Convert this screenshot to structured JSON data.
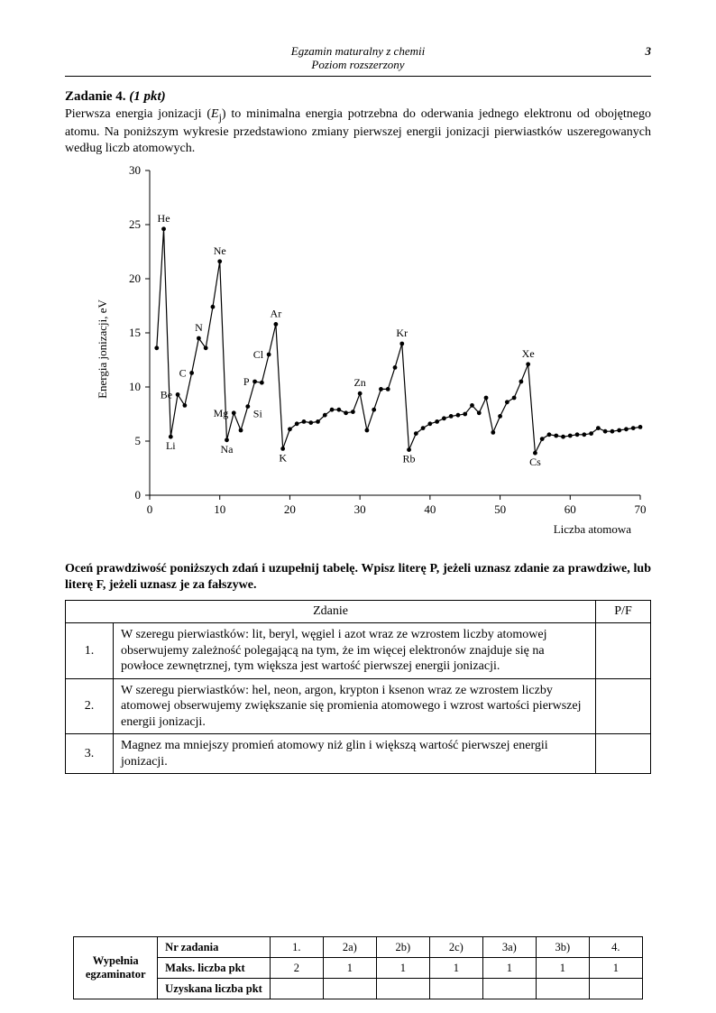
{
  "page_number": "3",
  "header_line1": "Egzamin maturalny z chemii",
  "header_line2": "Poziom rozszerzony",
  "task": {
    "label": "Zadanie 4.",
    "points": "(1 pkt)",
    "intro": "Pierwsza energia jonizacji (Ej) to minimalna energia potrzebna do oderwania jednego elektronu od obojętnego atomu. Na poniższym wykresie przedstawiono zmiany pierwszej energii jonizacji pierwiastków uszeregowanych według liczb atomowych.",
    "intro_pre": "Pierwsza energia jonizacji (",
    "intro_var": "E",
    "intro_sub": "j",
    "intro_post": ") to minimalna energia potrzebna do oderwania jednego elektronu od obojętnego atomu. Na poniższym wykresie przedstawiono zmiany pierwszej energii jonizacji pierwiastków uszeregowanych według liczb atomowych."
  },
  "chart": {
    "type": "line",
    "xlabel": "Liczba atomowa",
    "ylabel": "Energia jonizacji, eV",
    "xlim": [
      0,
      70
    ],
    "ylim": [
      0,
      30
    ],
    "xtick_step": 10,
    "ytick_step": 5,
    "background_color": "#ffffff",
    "line_color": "#000000",
    "marker_color": "#000000",
    "tick_fontsize": 13,
    "label_fontsize": 13,
    "element_label_fontsize": 12,
    "data": [
      {
        "x": 1,
        "y": 13.6
      },
      {
        "x": 2,
        "y": 24.6,
        "label": "He",
        "lpos": "t"
      },
      {
        "x": 3,
        "y": 5.4,
        "label": "Li",
        "lpos": "b"
      },
      {
        "x": 4,
        "y": 9.3,
        "label": "Be",
        "lpos": "l"
      },
      {
        "x": 5,
        "y": 8.3
      },
      {
        "x": 6,
        "y": 11.3,
        "label": "C",
        "lpos": "l"
      },
      {
        "x": 7,
        "y": 14.5,
        "label": "N",
        "lpos": "t"
      },
      {
        "x": 8,
        "y": 13.6
      },
      {
        "x": 9,
        "y": 17.4
      },
      {
        "x": 10,
        "y": 21.6,
        "label": "Ne",
        "lpos": "t"
      },
      {
        "x": 11,
        "y": 5.1,
        "label": "Na",
        "lpos": "b"
      },
      {
        "x": 12,
        "y": 7.6,
        "label": "Mg",
        "lpos": "l"
      },
      {
        "x": 13,
        "y": 6.0
      },
      {
        "x": 14,
        "y": 8.2,
        "label": "Si",
        "lpos": "br"
      },
      {
        "x": 15,
        "y": 10.5,
        "label": "P",
        "lpos": "l"
      },
      {
        "x": 16,
        "y": 10.4
      },
      {
        "x": 17,
        "y": 13.0,
        "label": "Cl",
        "lpos": "l"
      },
      {
        "x": 18,
        "y": 15.8,
        "label": "Ar",
        "lpos": "t"
      },
      {
        "x": 19,
        "y": 4.3,
        "label": "K",
        "lpos": "b"
      },
      {
        "x": 20,
        "y": 6.1
      },
      {
        "x": 21,
        "y": 6.6
      },
      {
        "x": 22,
        "y": 6.8
      },
      {
        "x": 23,
        "y": 6.7
      },
      {
        "x": 24,
        "y": 6.8
      },
      {
        "x": 25,
        "y": 7.4
      },
      {
        "x": 26,
        "y": 7.9
      },
      {
        "x": 27,
        "y": 7.9
      },
      {
        "x": 28,
        "y": 7.6
      },
      {
        "x": 29,
        "y": 7.7
      },
      {
        "x": 30,
        "y": 9.4,
        "label": "Zn",
        "lpos": "t"
      },
      {
        "x": 31,
        "y": 6.0
      },
      {
        "x": 32,
        "y": 7.9
      },
      {
        "x": 33,
        "y": 9.8
      },
      {
        "x": 34,
        "y": 9.8
      },
      {
        "x": 35,
        "y": 11.8
      },
      {
        "x": 36,
        "y": 14.0,
        "label": "Kr",
        "lpos": "t"
      },
      {
        "x": 37,
        "y": 4.2,
        "label": "Rb",
        "lpos": "b"
      },
      {
        "x": 38,
        "y": 5.7
      },
      {
        "x": 39,
        "y": 6.2
      },
      {
        "x": 40,
        "y": 6.6
      },
      {
        "x": 41,
        "y": 6.8
      },
      {
        "x": 42,
        "y": 7.1
      },
      {
        "x": 43,
        "y": 7.3
      },
      {
        "x": 44,
        "y": 7.4
      },
      {
        "x": 45,
        "y": 7.5
      },
      {
        "x": 46,
        "y": 8.3
      },
      {
        "x": 47,
        "y": 7.6
      },
      {
        "x": 48,
        "y": 9.0
      },
      {
        "x": 49,
        "y": 5.8
      },
      {
        "x": 50,
        "y": 7.3
      },
      {
        "x": 51,
        "y": 8.6
      },
      {
        "x": 52,
        "y": 9.0
      },
      {
        "x": 53,
        "y": 10.5
      },
      {
        "x": 54,
        "y": 12.1,
        "label": "Xe",
        "lpos": "t"
      },
      {
        "x": 55,
        "y": 3.9,
        "label": "Cs",
        "lpos": "b"
      },
      {
        "x": 56,
        "y": 5.2
      },
      {
        "x": 57,
        "y": 5.6
      },
      {
        "x": 58,
        "y": 5.5
      },
      {
        "x": 59,
        "y": 5.4
      },
      {
        "x": 60,
        "y": 5.5
      },
      {
        "x": 61,
        "y": 5.6
      },
      {
        "x": 62,
        "y": 5.6
      },
      {
        "x": 63,
        "y": 5.7
      },
      {
        "x": 64,
        "y": 6.2
      },
      {
        "x": 65,
        "y": 5.9
      },
      {
        "x": 66,
        "y": 5.9
      },
      {
        "x": 67,
        "y": 6.0
      },
      {
        "x": 68,
        "y": 6.1
      },
      {
        "x": 69,
        "y": 6.2
      },
      {
        "x": 70,
        "y": 6.3
      }
    ]
  },
  "instruction": "Oceń prawdziwość poniższych zdań i uzupełnij tabelę. Wpisz literę P, jeżeli uznasz zdanie za prawdziwe, lub literę F, jeżeli uznasz je za fałszywe.",
  "table": {
    "header_stmt": "Zdanie",
    "header_pf": "P/F",
    "rows": [
      {
        "n": "1.",
        "text": "W szeregu pierwiastków: lit, beryl, węgiel i azot wraz ze wzrostem liczby atomowej obserwujemy zależność polegającą na tym, że im więcej elektronów znajduje się na powłoce zewnętrznej, tym większa jest wartość pierwszej energii jonizacji."
      },
      {
        "n": "2.",
        "text": "W szeregu pierwiastków: hel, neon, argon, krypton i ksenon wraz ze wzrostem liczby atomowej obserwujemy zwiększanie się promienia atomowego i wzrost wartości pierwszej energii jonizacji."
      },
      {
        "n": "3.",
        "text": "Magnez ma mniejszy promień atomowy niż glin i większą wartość pierwszej energii jonizacji."
      }
    ]
  },
  "score": {
    "side_label": "Wypełnia egzaminator",
    "row1_label": "Nr zadania",
    "row2_label": "Maks. liczba pkt",
    "row3_label": "Uzyskana liczba pkt",
    "cols": [
      "1.",
      "2a)",
      "2b)",
      "2c)",
      "3a)",
      "3b)",
      "4."
    ],
    "max": [
      "2",
      "1",
      "1",
      "1",
      "1",
      "1",
      "1"
    ]
  }
}
